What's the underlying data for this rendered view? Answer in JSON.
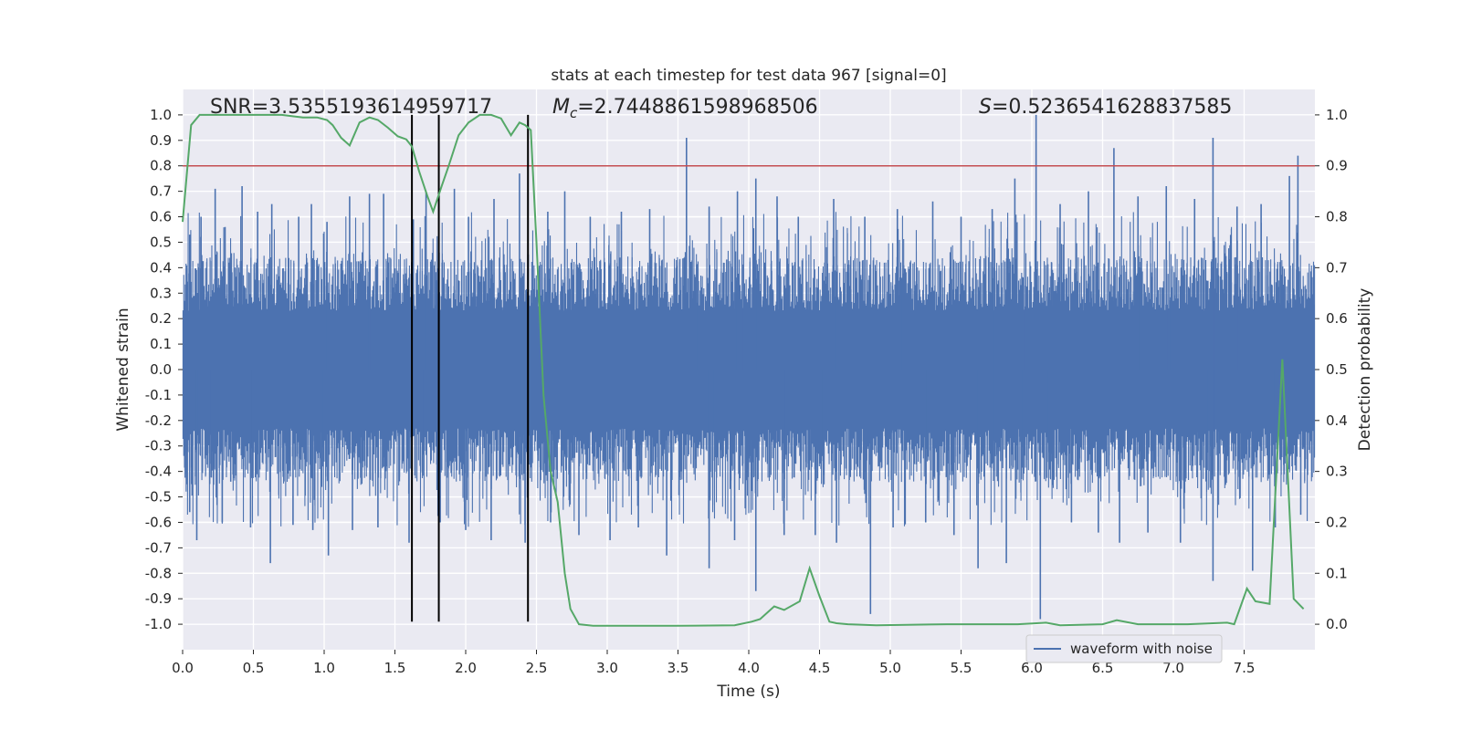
{
  "chart_data": {
    "type": "line",
    "title": "stats at each timestep for test data 967 [signal=0]",
    "xlabel": "Time (s)",
    "ylabel_left": "Whitened strain",
    "ylabel_right": "Detection probability",
    "xlim": [
      0.0,
      8.0
    ],
    "ylim_left": [
      -1.1,
      1.1
    ],
    "ylim_right": [
      -0.05,
      1.05
    ],
    "x_ticks": [
      "0.0",
      "0.5",
      "1.0",
      "1.5",
      "2.0",
      "2.5",
      "3.0",
      "3.5",
      "4.0",
      "4.5",
      "5.0",
      "5.5",
      "6.0",
      "6.5",
      "7.0",
      "7.5"
    ],
    "y_ticks_left": [
      "1.0",
      "0.9",
      "0.8",
      "0.7",
      "0.6",
      "0.5",
      "0.4",
      "0.3",
      "0.2",
      "0.1",
      "0.0",
      "-0.1",
      "-0.2",
      "-0.3",
      "-0.4",
      "-0.5",
      "-0.6",
      "-0.7",
      "-0.8",
      "-0.9",
      "-1.0"
    ],
    "y_ticks_right": [
      "1.0",
      "0.9",
      "0.8",
      "0.7",
      "0.6",
      "0.5",
      "0.4",
      "0.3",
      "0.2",
      "0.1",
      "0.0"
    ],
    "grid": true,
    "legend_position": "bottom-right",
    "annotations": {
      "snr": "SNR=3.5355193614959717",
      "mc_symbol": "M",
      "mc_sub": "c",
      "mc_value": "=2.7448861598968506",
      "s_symbol": "S",
      "s_value": "=0.5236541628837585"
    },
    "threshold": {
      "value": 0.8,
      "axis": "left",
      "color": "#c44e52"
    },
    "vertical_markers": [
      1.62,
      1.81,
      2.44
    ],
    "vertical_marker_range": [
      -0.99,
      1.0
    ],
    "series": [
      {
        "name": "waveform with noise",
        "axis": "left",
        "color": "#4c72b0",
        "typical_envelope": [
          -0.42,
          0.42
        ],
        "spikes": [
          {
            "x": 0.05,
            "y": 0.53
          },
          {
            "x": 0.13,
            "y": 0.6
          },
          {
            "x": 0.23,
            "y": 0.71
          },
          {
            "x": 0.3,
            "y": 0.56
          },
          {
            "x": 0.42,
            "y": 0.72
          },
          {
            "x": 0.53,
            "y": 0.62
          },
          {
            "x": 0.63,
            "y": 0.65
          },
          {
            "x": 0.82,
            "y": 0.6
          },
          {
            "x": 0.91,
            "y": 0.65
          },
          {
            "x": 1.02,
            "y": 0.58
          },
          {
            "x": 1.18,
            "y": 0.68
          },
          {
            "x": 1.32,
            "y": 0.69
          },
          {
            "x": 1.42,
            "y": 0.69
          },
          {
            "x": 1.63,
            "y": 0.59
          },
          {
            "x": 1.72,
            "y": 0.7
          },
          {
            "x": 1.92,
            "y": 0.71
          },
          {
            "x": 2.02,
            "y": 0.6
          },
          {
            "x": 2.2,
            "y": 0.67
          },
          {
            "x": 2.38,
            "y": 0.77
          },
          {
            "x": 2.58,
            "y": 0.62
          },
          {
            "x": 2.7,
            "y": 0.7
          },
          {
            "x": 2.88,
            "y": 0.6
          },
          {
            "x": 3.1,
            "y": 0.62
          },
          {
            "x": 3.3,
            "y": 0.63
          },
          {
            "x": 3.56,
            "y": 0.91
          },
          {
            "x": 3.72,
            "y": 0.64
          },
          {
            "x": 3.92,
            "y": 0.7
          },
          {
            "x": 4.05,
            "y": 0.75
          },
          {
            "x": 4.2,
            "y": 0.68
          },
          {
            "x": 4.35,
            "y": 0.6
          },
          {
            "x": 4.6,
            "y": 0.67
          },
          {
            "x": 4.82,
            "y": 0.6
          },
          {
            "x": 5.05,
            "y": 0.63
          },
          {
            "x": 5.3,
            "y": 0.66
          },
          {
            "x": 5.5,
            "y": 0.6
          },
          {
            "x": 5.72,
            "y": 0.63
          },
          {
            "x": 5.88,
            "y": 0.75
          },
          {
            "x": 6.03,
            "y": 1.0
          },
          {
            "x": 6.2,
            "y": 0.65
          },
          {
            "x": 6.4,
            "y": 0.7
          },
          {
            "x": 6.58,
            "y": 0.87
          },
          {
            "x": 6.75,
            "y": 0.68
          },
          {
            "x": 6.95,
            "y": 0.72
          },
          {
            "x": 7.15,
            "y": 0.67
          },
          {
            "x": 7.28,
            "y": 0.91
          },
          {
            "x": 7.45,
            "y": 0.64
          },
          {
            "x": 7.62,
            "y": 0.65
          },
          {
            "x": 7.82,
            "y": 0.76
          },
          {
            "x": 7.88,
            "y": 0.84
          },
          {
            "x": 0.05,
            "y": -0.56
          },
          {
            "x": 0.1,
            "y": -0.67
          },
          {
            "x": 0.28,
            "y": -0.6
          },
          {
            "x": 0.48,
            "y": -0.62
          },
          {
            "x": 0.62,
            "y": -0.76
          },
          {
            "x": 0.78,
            "y": -0.61
          },
          {
            "x": 0.92,
            "y": -0.63
          },
          {
            "x": 1.03,
            "y": -0.73
          },
          {
            "x": 1.2,
            "y": -0.63
          },
          {
            "x": 1.38,
            "y": -0.62
          },
          {
            "x": 1.6,
            "y": -0.68
          },
          {
            "x": 1.82,
            "y": -0.6
          },
          {
            "x": 2.0,
            "y": -0.63
          },
          {
            "x": 2.18,
            "y": -0.67
          },
          {
            "x": 2.42,
            "y": -0.68
          },
          {
            "x": 2.6,
            "y": -0.6
          },
          {
            "x": 2.8,
            "y": -0.65
          },
          {
            "x": 3.02,
            "y": -0.67
          },
          {
            "x": 3.22,
            "y": -0.62
          },
          {
            "x": 3.42,
            "y": -0.73
          },
          {
            "x": 3.72,
            "y": -0.78
          },
          {
            "x": 3.9,
            "y": -0.67
          },
          {
            "x": 4.05,
            "y": -0.87
          },
          {
            "x": 4.25,
            "y": -0.65
          },
          {
            "x": 4.47,
            "y": -0.65
          },
          {
            "x": 4.62,
            "y": -0.68
          },
          {
            "x": 4.86,
            "y": -0.96
          },
          {
            "x": 5.02,
            "y": -0.62
          },
          {
            "x": 5.25,
            "y": -0.6
          },
          {
            "x": 5.45,
            "y": -0.65
          },
          {
            "x": 5.62,
            "y": -0.78
          },
          {
            "x": 5.82,
            "y": -0.76
          },
          {
            "x": 6.06,
            "y": -0.98
          },
          {
            "x": 6.28,
            "y": -0.6
          },
          {
            "x": 6.47,
            "y": -0.64
          },
          {
            "x": 6.62,
            "y": -0.68
          },
          {
            "x": 6.82,
            "y": -0.64
          },
          {
            "x": 7.05,
            "y": -0.68
          },
          {
            "x": 7.28,
            "y": -0.83
          },
          {
            "x": 7.56,
            "y": -0.79
          },
          {
            "x": 7.72,
            "y": -0.62
          },
          {
            "x": 7.9,
            "y": -0.57
          }
        ]
      },
      {
        "name": "",
        "axis": "right",
        "color": "#55a868",
        "x": [
          0.0,
          0.06,
          0.12,
          0.2,
          0.3,
          0.5,
          0.7,
          0.85,
          0.95,
          1.02,
          1.06,
          1.12,
          1.18,
          1.25,
          1.32,
          1.38,
          1.45,
          1.52,
          1.58,
          1.62,
          1.67,
          1.73,
          1.77,
          1.83,
          1.88,
          1.95,
          2.02,
          2.1,
          2.18,
          2.25,
          2.32,
          2.38,
          2.42,
          2.46,
          2.5,
          2.55,
          2.6,
          2.65,
          2.7,
          2.74,
          2.8,
          2.9,
          3.1,
          3.5,
          3.9,
          4.02,
          4.08,
          4.18,
          4.25,
          4.36,
          4.43,
          4.5,
          4.57,
          4.62,
          4.7,
          4.9,
          5.4,
          5.9,
          6.1,
          6.2,
          6.5,
          6.6,
          6.75,
          6.95,
          7.1,
          7.38,
          7.43,
          7.52,
          7.58,
          7.68,
          7.77,
          7.85,
          7.92
        ],
        "y": [
          0.79,
          0.98,
          1.0,
          1.0,
          1.0,
          1.0,
          1.0,
          0.995,
          0.995,
          0.99,
          0.98,
          0.955,
          0.94,
          0.985,
          0.995,
          0.99,
          0.975,
          0.958,
          0.952,
          0.938,
          0.89,
          0.84,
          0.81,
          0.86,
          0.9,
          0.96,
          0.985,
          1.0,
          1.0,
          0.993,
          0.96,
          0.985,
          0.98,
          0.97,
          0.75,
          0.45,
          0.3,
          0.24,
          0.1,
          0.03,
          0.0,
          -0.003,
          -0.003,
          -0.003,
          -0.002,
          0.005,
          0.01,
          0.035,
          0.028,
          0.045,
          0.11,
          0.055,
          0.005,
          0.002,
          0.0,
          -0.002,
          0.0,
          0.0,
          0.003,
          -0.002,
          0.0,
          0.008,
          0.0,
          0.0,
          0.0,
          0.003,
          0.0,
          0.07,
          0.045,
          0.04,
          0.52,
          0.05,
          0.03
        ]
      }
    ]
  }
}
